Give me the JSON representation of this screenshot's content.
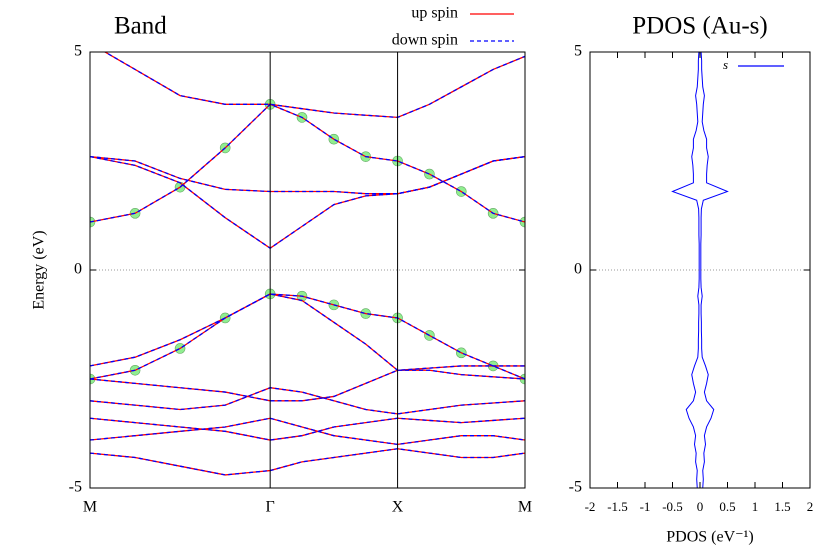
{
  "chart_data": [
    {
      "type": "band",
      "title": "Band",
      "ylabel": "Energy (eV)",
      "x": [
        0,
        0.354,
        0.707,
        1.061,
        1.414,
        1.664,
        1.914,
        2.164,
        2.414,
        2.664,
        2.914,
        3.164,
        3.414
      ],
      "xlim": [
        0,
        3.414
      ],
      "xticks": [
        {
          "value": 0,
          "label": "M"
        },
        {
          "value": 1.414,
          "label": "Γ"
        },
        {
          "value": 2.414,
          "label": "X"
        },
        {
          "value": 3.414,
          "label": "M"
        }
      ],
      "xgrid": true,
      "ylim": [
        -5,
        5
      ],
      "yticks": [
        -5,
        0,
        5
      ],
      "zero_line": true,
      "series": [
        {
          "name": "up spin",
          "color": "#ff0000",
          "dash": false,
          "values": [
            [
              1.1,
              1.3,
              1.9,
              2.8,
              3.8,
              3.5,
              3.0,
              2.6,
              2.5,
              2.2,
              1.8,
              1.3,
              1.1
            ],
            [
              2.6,
              2.5,
              2.1,
              1.85,
              1.8,
              1.8,
              1.8,
              1.75,
              1.75,
              1.9,
              2.2,
              2.5,
              2.6
            ],
            [
              2.6,
              2.4,
              2.0,
              1.2,
              0.5,
              1.0,
              1.5,
              1.7,
              1.75,
              1.9,
              2.2,
              2.5,
              2.6
            ],
            [
              -2.5,
              -2.3,
              -1.8,
              -1.1,
              -0.55,
              -0.6,
              -0.8,
              -1.0,
              -1.1,
              -1.5,
              -1.9,
              -2.2,
              -2.5
            ],
            [
              -2.2,
              -2.0,
              -1.6,
              -1.1,
              -0.55,
              -0.7,
              -1.2,
              -1.7,
              -2.3,
              -2.25,
              -2.2,
              -2.2,
              -2.2
            ],
            [
              -2.5,
              -2.6,
              -2.7,
              -2.8,
              -3.0,
              -3.0,
              -2.9,
              -2.6,
              -2.3,
              -2.3,
              -2.4,
              -2.45,
              -2.5
            ],
            [
              -3.0,
              -3.1,
              -3.2,
              -3.1,
              -2.7,
              -2.8,
              -3.0,
              -3.2,
              -3.3,
              -3.2,
              -3.1,
              -3.05,
              -3.0
            ],
            [
              -3.4,
              -3.5,
              -3.6,
              -3.7,
              -3.9,
              -3.8,
              -3.6,
              -3.5,
              -3.4,
              -3.45,
              -3.5,
              -3.45,
              -3.4
            ],
            [
              -3.9,
              -3.8,
              -3.7,
              -3.6,
              -3.4,
              -3.6,
              -3.8,
              -3.9,
              -4.0,
              -3.9,
              -3.8,
              -3.8,
              -3.9
            ],
            [
              -4.2,
              -4.3,
              -4.5,
              -4.7,
              -4.6,
              -4.4,
              -4.3,
              -4.2,
              -4.1,
              -4.2,
              -4.3,
              -4.3,
              -4.2
            ],
            [
              5.2,
              4.6,
              4.0,
              3.8,
              3.8,
              3.7,
              3.6,
              3.55,
              3.5,
              3.8,
              4.2,
              4.6,
              4.9
            ]
          ]
        },
        {
          "name": "down spin",
          "color": "#0000ff",
          "dash": true,
          "values": [
            [
              1.1,
              1.3,
              1.9,
              2.8,
              3.8,
              3.5,
              3.0,
              2.6,
              2.5,
              2.2,
              1.8,
              1.3,
              1.1
            ],
            [
              2.6,
              2.5,
              2.1,
              1.85,
              1.8,
              1.8,
              1.8,
              1.75,
              1.75,
              1.9,
              2.2,
              2.5,
              2.6
            ],
            [
              2.6,
              2.4,
              2.0,
              1.2,
              0.5,
              1.0,
              1.5,
              1.7,
              1.75,
              1.9,
              2.2,
              2.5,
              2.6
            ],
            [
              -2.5,
              -2.3,
              -1.8,
              -1.1,
              -0.55,
              -0.6,
              -0.8,
              -1.0,
              -1.1,
              -1.5,
              -1.9,
              -2.2,
              -2.5
            ],
            [
              -2.2,
              -2.0,
              -1.6,
              -1.1,
              -0.55,
              -0.7,
              -1.2,
              -1.7,
              -2.3,
              -2.25,
              -2.2,
              -2.2,
              -2.2
            ],
            [
              -2.5,
              -2.6,
              -2.7,
              -2.8,
              -3.0,
              -3.0,
              -2.9,
              -2.6,
              -2.3,
              -2.3,
              -2.4,
              -2.45,
              -2.5
            ],
            [
              -3.0,
              -3.1,
              -3.2,
              -3.1,
              -2.7,
              -2.8,
              -3.0,
              -3.2,
              -3.3,
              -3.2,
              -3.1,
              -3.05,
              -3.0
            ],
            [
              -3.4,
              -3.5,
              -3.6,
              -3.7,
              -3.9,
              -3.8,
              -3.6,
              -3.5,
              -3.4,
              -3.45,
              -3.5,
              -3.45,
              -3.4
            ],
            [
              -3.9,
              -3.8,
              -3.7,
              -3.6,
              -3.4,
              -3.6,
              -3.8,
              -3.9,
              -4.0,
              -3.9,
              -3.8,
              -3.8,
              -3.9
            ],
            [
              -4.2,
              -4.3,
              -4.5,
              -4.7,
              -4.6,
              -4.4,
              -4.3,
              -4.2,
              -4.1,
              -4.2,
              -4.3,
              -4.3,
              -4.2
            ],
            [
              5.2,
              4.6,
              4.0,
              3.8,
              3.8,
              3.7,
              3.6,
              3.55,
              3.5,
              3.8,
              4.2,
              4.6,
              4.9
            ]
          ]
        }
      ],
      "highlight": {
        "color": "#90ee90",
        "bands": [
          0,
          3
        ]
      }
    },
    {
      "type": "line",
      "title": "PDOS (Au-s)",
      "xlabel": "PDOS (eV⁻¹)",
      "y": [
        -5.0,
        -4.8,
        -4.6,
        -4.4,
        -4.2,
        -4.0,
        -3.8,
        -3.6,
        -3.4,
        -3.2,
        -3.0,
        -2.8,
        -2.6,
        -2.4,
        -2.2,
        -2.0,
        -1.8,
        -1.6,
        -1.4,
        -1.2,
        -1.0,
        -0.8,
        -0.6,
        -0.4,
        -0.2,
        0,
        0.2,
        0.4,
        0.6,
        0.8,
        1.0,
        1.2,
        1.4,
        1.6,
        1.8,
        2.0,
        2.2,
        2.4,
        2.6,
        2.8,
        3.0,
        3.2,
        3.4,
        3.6,
        3.8,
        4.0,
        4.2,
        4.4,
        4.6,
        4.8,
        5.0
      ],
      "xlim": [
        -2,
        2
      ],
      "xticks": [
        -2,
        -1.5,
        -1,
        -0.5,
        0,
        0.5,
        1,
        1.5,
        2
      ],
      "ylim": [
        -5,
        5
      ],
      "yticks": [
        -5,
        0,
        5
      ],
      "zero_line": true,
      "legend": "upper right",
      "series": [
        {
          "name": "s",
          "color": "#0000ff",
          "values": [
            0.05,
            0.06,
            0.05,
            0.08,
            0.07,
            0.1,
            0.08,
            0.12,
            0.2,
            0.25,
            0.12,
            0.08,
            0.12,
            0.15,
            0.1,
            0.04,
            0.03,
            0.03,
            0.025,
            0.025,
            0.02,
            0.02,
            0.04,
            0.02,
            0.015,
            0.015,
            0.015,
            0.015,
            0.015,
            0.02,
            0.02,
            0.02,
            0.025,
            0.06,
            0.5,
            0.12,
            0.12,
            0.13,
            0.15,
            0.12,
            0.12,
            0.07,
            0.04,
            0.05,
            0.06,
            0.08,
            0.05,
            0.04,
            0.03,
            0.03,
            0.02
          ]
        },
        {
          "color": "#0000ff",
          "values": [
            -0.05,
            -0.06,
            -0.05,
            -0.08,
            -0.07,
            -0.1,
            -0.08,
            -0.12,
            -0.2,
            -0.25,
            -0.12,
            -0.08,
            -0.12,
            -0.15,
            -0.1,
            -0.04,
            -0.03,
            -0.03,
            -0.025,
            -0.025,
            -0.02,
            -0.02,
            -0.04,
            -0.02,
            -0.015,
            -0.015,
            -0.015,
            -0.015,
            -0.015,
            -0.02,
            -0.02,
            -0.02,
            -0.025,
            -0.06,
            -0.5,
            -0.12,
            -0.12,
            -0.13,
            -0.15,
            -0.12,
            -0.12,
            -0.07,
            -0.04,
            -0.05,
            -0.06,
            -0.08,
            -0.05,
            -0.04,
            -0.03,
            -0.03,
            -0.02
          ]
        }
      ]
    }
  ]
}
